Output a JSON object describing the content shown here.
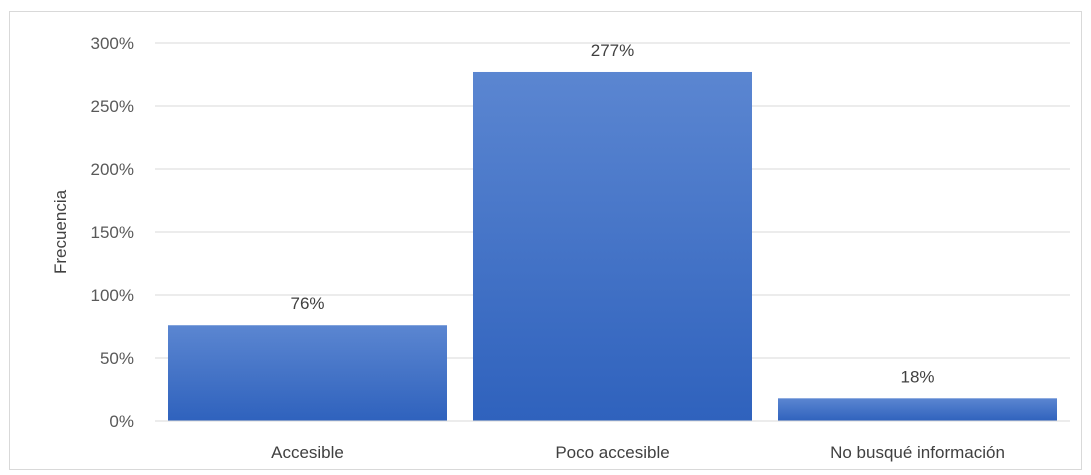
{
  "chart_data": {
    "type": "bar",
    "categories": [
      "Accesible",
      "Poco accesible",
      "No busqué información"
    ],
    "values": [
      76,
      277,
      18
    ],
    "data_labels": [
      "76%",
      "277%",
      "18%"
    ],
    "ylabel": "Frecuencia",
    "xlabel": "",
    "ylim": [
      0,
      300
    ],
    "yticks": [
      0,
      50,
      100,
      150,
      200,
      250,
      300
    ],
    "ytick_labels": [
      "0%",
      "50%",
      "100%",
      "150%",
      "200%",
      "250%",
      "300%"
    ],
    "grid": true,
    "legend": "none",
    "colors": {
      "bar_top": "#5b86d1",
      "bar_bottom": "#2f62bd",
      "grid": "#d9d9d9"
    }
  }
}
